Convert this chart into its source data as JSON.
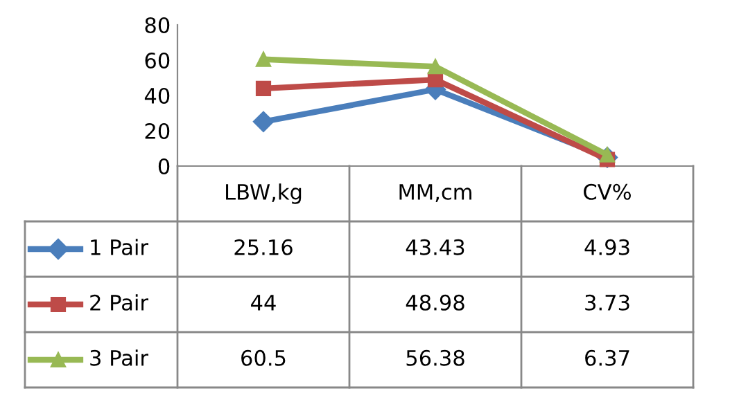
{
  "chart_data": {
    "type": "line",
    "categories": [
      "LBW,kg",
      "MM,cm",
      "CV%"
    ],
    "ylim": [
      0,
      80
    ],
    "yticks": [
      0,
      20,
      40,
      60,
      80
    ],
    "data_labels": true,
    "legend": "bottom",
    "line_style": "solid",
    "series": [
      {
        "name": "1 Pair",
        "color": "#4a7ebb",
        "marker": "diamond",
        "values": [
          25.16,
          43.43,
          4.93
        ]
      },
      {
        "name": "2 Pair",
        "color": "#be4b48",
        "marker": "square",
        "values": [
          44,
          48.98,
          3.73
        ]
      },
      {
        "name": "3 Pair",
        "color": "#98b954",
        "marker": "triangle",
        "values": [
          60.5,
          56.38,
          6.37
        ]
      }
    ]
  }
}
